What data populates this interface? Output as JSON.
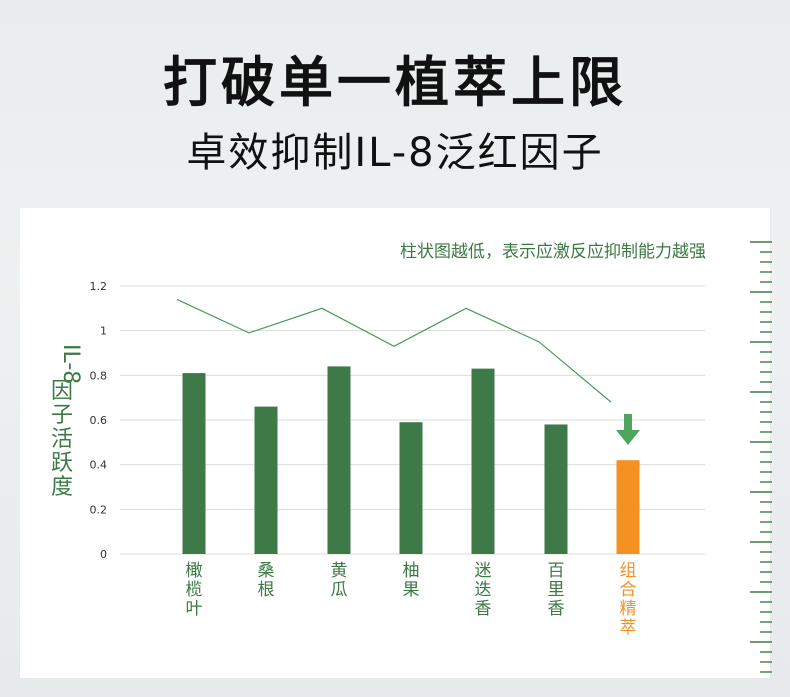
{
  "title_line1": "打破单一植萃上限",
  "title_line2": "卓效抑制IL-8泛红因子",
  "colors": {
    "bar": "#3d7a48",
    "highlight": "#f39223",
    "line": "#4a9a5a",
    "arrow": "#4ea65e",
    "grid": "#d9ddd9",
    "text_green": "#3c7a44"
  },
  "chart_data": {
    "type": "bar",
    "annotation": "柱状图越低，表示应激反应抑制能力越强",
    "ylabel": "IL-8因子活跃度",
    "ylim": [
      0,
      1.2
    ],
    "yticks": [
      "0",
      "0.2",
      "0.4",
      "0.6",
      "0.8",
      "1",
      "1.2"
    ],
    "categories": [
      "橄榄叶",
      "桑根",
      "黄瓜",
      "柚果",
      "迷迭香",
      "百里香",
      "组合精萃"
    ],
    "values": [
      0.81,
      0.66,
      0.84,
      0.59,
      0.83,
      0.58,
      0.42
    ],
    "line_values": [
      1.14,
      0.99,
      1.1,
      0.93,
      1.1,
      0.95,
      0.68
    ],
    "highlight_index": 6,
    "grid": true
  }
}
